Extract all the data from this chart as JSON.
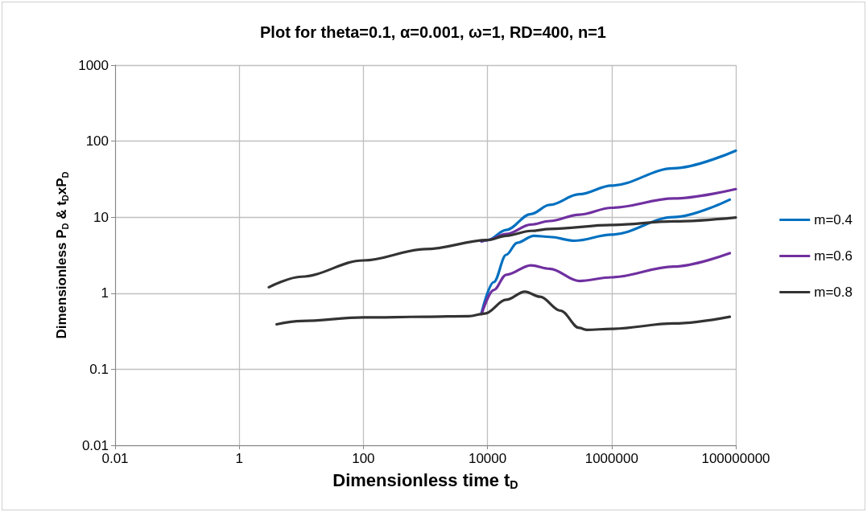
{
  "chart_data": {
    "type": "line",
    "title": "Plot for theta=0.1, α=0.001, ω=1, RD=400, n=1",
    "xlabel": "Dimensionless time t$_{D}$",
    "ylabel": "Dimensionless P$_{D}$ & t$_{D}$xP$_{D}$",
    "log": "xy",
    "grid": true,
    "legend": "right",
    "marker": "none",
    "line_style": "solid",
    "xlim": [
      0.01,
      100000000
    ],
    "xticks": [
      0.01,
      1,
      100,
      10000,
      1000000,
      100000000
    ],
    "ylim": [
      0.01,
      1000
    ],
    "yticks": [
      0.01,
      0.1,
      1,
      10,
      100,
      1000
    ],
    "series": [
      {
        "name": "m=0.4",
        "color": "#0070c0",
        "x": [
          8000,
          10000,
          20000,
          50000,
          100000,
          300000,
          1000000,
          10000000,
          100000000
        ],
        "values": [
          4.8,
          5,
          6.8,
          11,
          14.5,
          20,
          26,
          44,
          75
        ]
      },
      {
        "color": "#0070c0",
        "x": [
          8000,
          12600,
          20000,
          30000,
          56000,
          100000,
          250000,
          1000000,
          10000000,
          80000000
        ],
        "values": [
          0.55,
          1.4,
          3.2,
          4.6,
          5.7,
          5.5,
          4.9,
          5.9,
          10,
          17
        ]
      },
      {
        "name": "m=0.6",
        "color": "#7030a0",
        "x": [
          8000,
          10000,
          20000,
          50000,
          100000,
          300000,
          1000000,
          10000000,
          100000000
        ],
        "values": [
          4.8,
          5,
          6,
          8,
          8.9,
          10.8,
          13.3,
          17.6,
          23.4
        ]
      },
      {
        "color": "#7030a0",
        "x": [
          8000,
          12600,
          20000,
          50000,
          100000,
          300000,
          1000000,
          10000000,
          80000000
        ],
        "values": [
          0.53,
          1.1,
          1.75,
          2.33,
          2.1,
          1.45,
          1.62,
          2.24,
          3.36
        ]
      },
      {
        "name": "m=0.8",
        "color": "#333333",
        "x": [
          3,
          10,
          100,
          1000,
          10000,
          20000,
          50000,
          100000,
          1000000,
          10000000,
          100000000
        ],
        "values": [
          1.2,
          1.65,
          2.7,
          3.8,
          5,
          5.7,
          6.6,
          7,
          7.9,
          8.8,
          9.9
        ]
      },
      {
        "color": "#333333",
        "x": [
          4,
          10,
          100,
          1000,
          5000,
          9000,
          20000,
          40000,
          70000,
          150000,
          300000,
          400000,
          1000000,
          10000000,
          80000000
        ],
        "values": [
          0.39,
          0.43,
          0.48,
          0.49,
          0.5,
          0.54,
          0.82,
          1.05,
          0.9,
          0.59,
          0.35,
          0.33,
          0.34,
          0.4,
          0.49
        ]
      }
    ]
  }
}
